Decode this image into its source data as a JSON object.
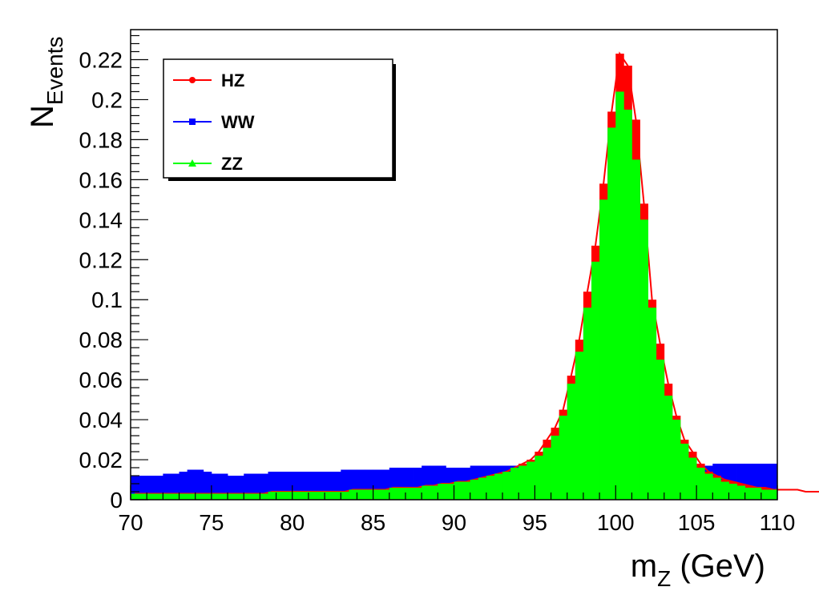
{
  "chart_data": {
    "type": "histogram",
    "xlabel": {
      "main": "m",
      "sub": "Z",
      "suffix": " (GeV)"
    },
    "ylabel": {
      "main": "N",
      "sub": "Events"
    },
    "xlim": [
      70,
      110
    ],
    "ylim": [
      0,
      0.235
    ],
    "x_ticks": [
      70,
      75,
      80,
      85,
      90,
      95,
      100,
      105,
      110
    ],
    "x_tick_labels": [
      "70",
      "75",
      "80",
      "85",
      "90",
      "95",
      "100",
      "105",
      "110"
    ],
    "y_ticks": [
      0,
      0.02,
      0.04,
      0.06,
      0.08,
      0.1,
      0.12,
      0.14,
      0.16,
      0.18,
      0.2,
      0.22
    ],
    "y_tick_labels": [
      "0",
      "0.02",
      "0.04",
      "0.06",
      "0.08",
      "0.1",
      "0.12",
      "0.14",
      "0.16",
      "0.18",
      "0.2",
      "0.22"
    ],
    "grid": false,
    "legend_position": "top-left",
    "bin_width": 0.5,
    "series": [
      {
        "name": "WW",
        "color": "#0000ff",
        "marker": "square",
        "style": "filled-histogram",
        "values": [
          0.012,
          0.012,
          0.012,
          0.012,
          0.013,
          0.013,
          0.014,
          0.015,
          0.015,
          0.014,
          0.013,
          0.013,
          0.012,
          0.012,
          0.013,
          0.013,
          0.013,
          0.014,
          0.014,
          0.014,
          0.014,
          0.014,
          0.014,
          0.014,
          0.014,
          0.014,
          0.015,
          0.015,
          0.015,
          0.015,
          0.015,
          0.015,
          0.016,
          0.016,
          0.016,
          0.016,
          0.017,
          0.017,
          0.017,
          0.016,
          0.016,
          0.016,
          0.017,
          0.017,
          0.017,
          0.017,
          0.017,
          0.017,
          0.018,
          0.018,
          0.017,
          0.017,
          0.017,
          0.017,
          0.016,
          0.016,
          0.016,
          0.016,
          0.016,
          0.017,
          0.017,
          0.017,
          0.017,
          0.017,
          0.017,
          0.017,
          0.017,
          0.017,
          0.017,
          0.017,
          0.017,
          0.017,
          0.018,
          0.018,
          0.018,
          0.018,
          0.018,
          0.018,
          0.018,
          0.018,
          0.018,
          0.019,
          0.019,
          0.019,
          0.018,
          0.019,
          0.019,
          0.02,
          0.02,
          0.019,
          0.019,
          0.019,
          0.019,
          0.019,
          0.019,
          0.019,
          0.019,
          0.019,
          0.019,
          0.019,
          0.019,
          0.019,
          0.019,
          0.019,
          0.019,
          0.02,
          0.02,
          0.02,
          0.02,
          0.021,
          0.021,
          0.021,
          0.021,
          0.022,
          0.022,
          0.022,
          0.022,
          0.022,
          0.022,
          0.021,
          0.021,
          0.021,
          0.021,
          0.021,
          0.021,
          0.021,
          0.021,
          0.021,
          0.022,
          0.022,
          0.022,
          0.022,
          0.022,
          0.022,
          0.022
        ]
      },
      {
        "name": "HZ",
        "color": "#ff0000",
        "marker": "circle",
        "style": "filled-histogram-with-line",
        "values": [
          0.003,
          0.003,
          0.003,
          0.003,
          0.003,
          0.003,
          0.003,
          0.003,
          0.003,
          0.003,
          0.003,
          0.003,
          0.003,
          0.003,
          0.003,
          0.003,
          0.003,
          0.004,
          0.004,
          0.004,
          0.004,
          0.004,
          0.004,
          0.004,
          0.004,
          0.004,
          0.004,
          0.005,
          0.005,
          0.005,
          0.005,
          0.005,
          0.006,
          0.006,
          0.006,
          0.006,
          0.007,
          0.007,
          0.008,
          0.008,
          0.009,
          0.009,
          0.01,
          0.011,
          0.012,
          0.013,
          0.014,
          0.016,
          0.018,
          0.02,
          0.024,
          0.03,
          0.036,
          0.045,
          0.062,
          0.08,
          0.104,
          0.127,
          0.158,
          0.194,
          0.223,
          0.217,
          0.19,
          0.148,
          0.1,
          0.078,
          0.058,
          0.042,
          0.03,
          0.024,
          0.018,
          0.014,
          0.012,
          0.01,
          0.009,
          0.008,
          0.007,
          0.006,
          0.006,
          0.005,
          0.005,
          0.005,
          0.005,
          0.004,
          0.004,
          0.004,
          0.004,
          0.004,
          0.004,
          0.004,
          0.004,
          0.004,
          0.004,
          0.004,
          0.004,
          0.004,
          0.004,
          0.003,
          0.003,
          0.003,
          0.003,
          0.003,
          0.003,
          0.003,
          0.003,
          0.003,
          0.003,
          0.003,
          0.003,
          0.003,
          0.003,
          0.003,
          0.003,
          0.003,
          0.003,
          0.003,
          0.003,
          0.003,
          0.003,
          0.003,
          0.003,
          0.003,
          0.003,
          0.003,
          0.003,
          0.003,
          0.003,
          0.003,
          0.003,
          0.003,
          0.003,
          0.003,
          0.003,
          0.003,
          0.003
        ]
      },
      {
        "name": "ZZ",
        "color": "#00ff00",
        "marker": "triangle",
        "style": "filled-histogram",
        "values": [
          0.003,
          0.003,
          0.003,
          0.003,
          0.003,
          0.003,
          0.003,
          0.003,
          0.003,
          0.003,
          0.003,
          0.003,
          0.003,
          0.003,
          0.003,
          0.003,
          0.003,
          0.004,
          0.004,
          0.004,
          0.004,
          0.004,
          0.004,
          0.004,
          0.004,
          0.004,
          0.004,
          0.005,
          0.005,
          0.005,
          0.005,
          0.005,
          0.006,
          0.006,
          0.006,
          0.006,
          0.007,
          0.007,
          0.008,
          0.008,
          0.009,
          0.009,
          0.01,
          0.011,
          0.012,
          0.013,
          0.014,
          0.016,
          0.017,
          0.019,
          0.022,
          0.026,
          0.032,
          0.042,
          0.058,
          0.074,
          0.096,
          0.119,
          0.15,
          0.186,
          0.204,
          0.195,
          0.17,
          0.14,
          0.096,
          0.07,
          0.052,
          0.04,
          0.028,
          0.021,
          0.016,
          0.013,
          0.011,
          0.009,
          0.008,
          0.007,
          0.006,
          0.006,
          0.005,
          0.005,
          0.005,
          0.005,
          0.005,
          0.004,
          0.004,
          0.004,
          0.004,
          0.004,
          0.004,
          0.004,
          0.004,
          0.004,
          0.004,
          0.004,
          0.004,
          0.004,
          0.004,
          0.003,
          0.003,
          0.003,
          0.003,
          0.003,
          0.003,
          0.003,
          0.003,
          0.003,
          0.003,
          0.003,
          0.003,
          0.003,
          0.003,
          0.003,
          0.003,
          0.003,
          0.003,
          0.003,
          0.003,
          0.003,
          0.003,
          0.003,
          0.003,
          0.003,
          0.003,
          0.003,
          0.003,
          0.003,
          0.003,
          0.003,
          0.003,
          0.003,
          0.003,
          0.003,
          0.003,
          0.003,
          0.003
        ]
      }
    ]
  }
}
